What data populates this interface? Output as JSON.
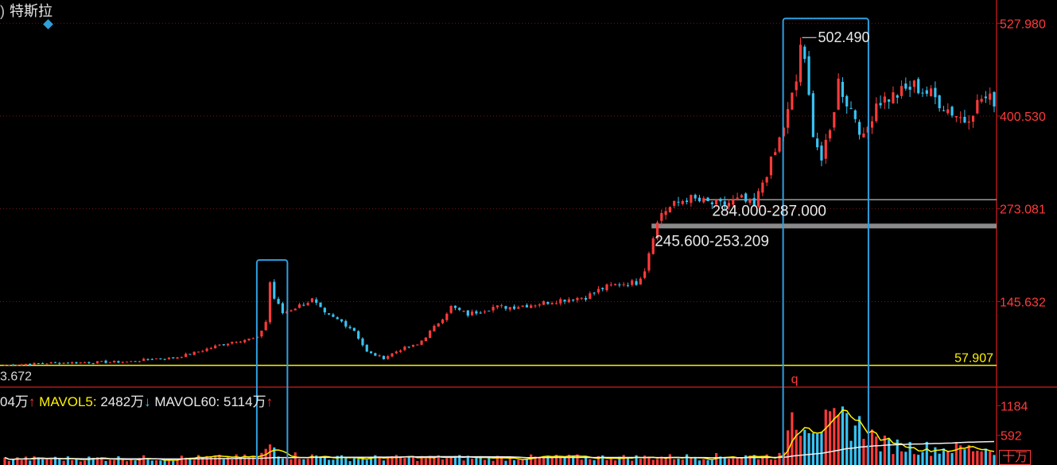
{
  "header": {
    "paren": ")",
    "stock_name": "特斯拉"
  },
  "volume_header": {
    "vol_value": "04万",
    "vol_arrow": "↑",
    "ma5_label": "MAVOL5:",
    "ma5_value": "2482万",
    "ma5_arrow": "↓",
    "ma60_label": "MAVOL60:",
    "ma60_value": "5114万",
    "ma60_arrow": "↑"
  },
  "volume_unit": "十万",
  "colors": {
    "up": "#ff3a3a",
    "down": "#39c3f4",
    "yellow": "#fff200",
    "box": "#2f9fe0",
    "grid": "#7a1414",
    "axis": "#b01818",
    "white": "#f0f0f0"
  },
  "chart_data": {
    "type": "candlestick",
    "price_ticks": [
      {
        "value": 527.98,
        "label": "527.980"
      },
      {
        "value": 400.53,
        "label": "400.530"
      },
      {
        "value": 273.081,
        "label": "273.081"
      },
      {
        "value": 145.632,
        "label": "145.632"
      }
    ],
    "volume_ticks": [
      {
        "value": 1184,
        "label": "1184"
      },
      {
        "value": 592,
        "label": "592"
      }
    ],
    "price_range": [
      28,
      560
    ],
    "volume_range": [
      0,
      1300
    ],
    "horizontal_levels": [
      {
        "value": 57.907,
        "label": "57.907",
        "color": "#fff200"
      },
      {
        "value": 285.5,
        "label": "284.000-287.000",
        "color": "#8a8a8a"
      },
      {
        "value": 249.4,
        "label": "245.600-253.209",
        "color": "#8a8a8a"
      }
    ],
    "peak_annotation": {
      "value": 502.49,
      "label": "502.490"
    },
    "left_cut_label": "3.672",
    "marker_label": "q",
    "highlight_boxes": [
      {
        "from_index": 61,
        "to_index": 66
      },
      {
        "from_index": 186,
        "to_index": 204
      }
    ],
    "anchors": [
      [
        0,
        58
      ],
      [
        10,
        61
      ],
      [
        20,
        62
      ],
      [
        30,
        63
      ],
      [
        35,
        67
      ],
      [
        40,
        68
      ],
      [
        45,
        75
      ],
      [
        50,
        84
      ],
      [
        55,
        92
      ],
      [
        60,
        95
      ],
      [
        62,
        118
      ],
      [
        63,
        172
      ],
      [
        64,
        150
      ],
      [
        66,
        130
      ],
      [
        70,
        140
      ],
      [
        73,
        148
      ],
      [
        76,
        128
      ],
      [
        80,
        118
      ],
      [
        83,
        106
      ],
      [
        86,
        76
      ],
      [
        90,
        68
      ],
      [
        94,
        80
      ],
      [
        98,
        86
      ],
      [
        102,
        110
      ],
      [
        106,
        138
      ],
      [
        110,
        128
      ],
      [
        116,
        138
      ],
      [
        120,
        138
      ],
      [
        126,
        142
      ],
      [
        132,
        148
      ],
      [
        138,
        152
      ],
      [
        142,
        164
      ],
      [
        146,
        170
      ],
      [
        150,
        172
      ],
      [
        152,
        190
      ],
      [
        154,
        238
      ],
      [
        156,
        268
      ],
      [
        158,
        275
      ],
      [
        162,
        288
      ],
      [
        166,
        282
      ],
      [
        170,
        278
      ],
      [
        175,
        286
      ],
      [
        178,
        275
      ],
      [
        180,
        310
      ],
      [
        183,
        350
      ],
      [
        186,
        405
      ],
      [
        188,
        448
      ],
      [
        189,
        500
      ],
      [
        190,
        470
      ],
      [
        192,
        380
      ],
      [
        194,
        340
      ],
      [
        196,
        378
      ],
      [
        198,
        448
      ],
      [
        200,
        420
      ],
      [
        202,
        400
      ],
      [
        204,
        368
      ],
      [
        207,
        420
      ],
      [
        212,
        430
      ],
      [
        216,
        442
      ],
      [
        220,
        430
      ],
      [
        224,
        410
      ],
      [
        228,
        395
      ],
      [
        232,
        425
      ],
      [
        235,
        422
      ]
    ],
    "volume_anchors": [
      [
        0,
        120
      ],
      [
        60,
        150
      ],
      [
        62,
        260
      ],
      [
        63,
        420
      ],
      [
        66,
        200
      ],
      [
        80,
        140
      ],
      [
        150,
        150
      ],
      [
        185,
        180
      ],
      [
        186,
        1000
      ],
      [
        190,
        960
      ],
      [
        196,
        760
      ],
      [
        200,
        880
      ],
      [
        204,
        720
      ],
      [
        208,
        420
      ],
      [
        220,
        330
      ],
      [
        235,
        330
      ]
    ]
  }
}
